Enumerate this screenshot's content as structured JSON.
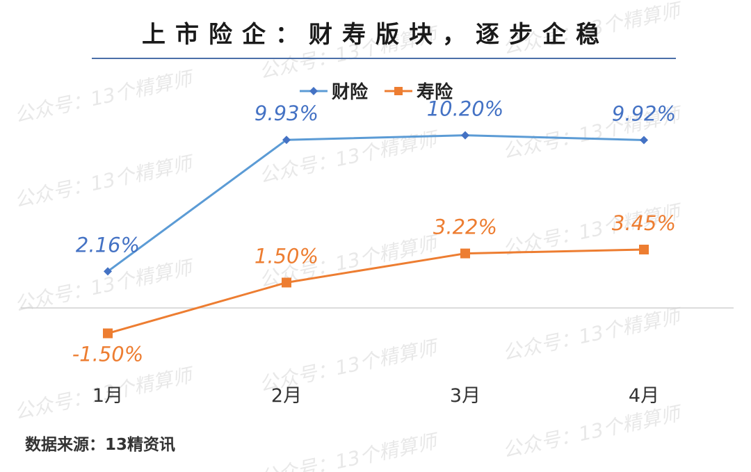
{
  "title": "上市险企：财寿版块，逐步企稳",
  "source": "数据来源：13精资讯",
  "watermark": "公众号：13个精算师",
  "chart_data": {
    "type": "line",
    "title": "上市险企：财寿版块，逐步企稳",
    "categories": [
      "1月",
      "2月",
      "3月",
      "4月"
    ],
    "series": [
      {
        "name": "财险",
        "values": [
          2.16,
          9.93,
          10.2,
          9.92
        ],
        "labels": [
          "2.16%",
          "9.93%",
          "10.20%",
          "9.92%"
        ],
        "color": "#5b9bd5",
        "label_color": "#4472c4",
        "marker": "diamond"
      },
      {
        "name": "寿险",
        "values": [
          -1.5,
          1.5,
          3.22,
          3.45
        ],
        "labels": [
          "-1.50%",
          "1.50%",
          "3.22%",
          "3.45%"
        ],
        "color": "#ed7d31",
        "label_color": "#ed7d31",
        "marker": "square"
      }
    ],
    "legend": "top-center",
    "grid": false,
    "unit": "%"
  }
}
